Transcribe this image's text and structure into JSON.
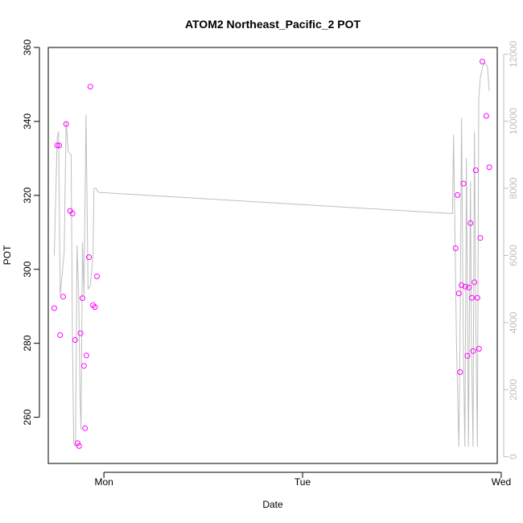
{
  "chart_data": {
    "type": "scatter",
    "title": "ATOM2 Northeast_Pacific_2 POT",
    "xlabel": "Date",
    "ylabel": "POT",
    "x_unit": "days",
    "xlim": [
      -0.28,
      1.98
    ],
    "ylim": [
      247.5,
      360
    ],
    "y_ticks": [
      260,
      280,
      300,
      320,
      340,
      360
    ],
    "x_ticks": [
      {
        "label": "Mon",
        "value": 0
      },
      {
        "label": "Tue",
        "value": 1
      },
      {
        "label": "Wed",
        "value": 2
      }
    ],
    "right_axis": {
      "ylim": [
        -200,
        12200
      ],
      "ticks": [
        0,
        2000,
        4000,
        6000,
        8000,
        10000,
        12000
      ]
    },
    "colors": {
      "points": "#ff00ff",
      "line": "#bebebe",
      "axis": "#000000"
    },
    "series": [
      {
        "kind": "points",
        "x": [
          -0.25,
          -0.235,
          -0.225,
          -0.22,
          -0.205,
          -0.19,
          -0.17,
          -0.158,
          -0.145,
          -0.132,
          -0.125,
          -0.118,
          -0.108,
          -0.1,
          -0.095,
          -0.088,
          -0.075,
          -0.068,
          -0.055,
          -0.045,
          -0.035,
          1.77,
          1.78,
          1.787,
          1.793,
          1.8,
          1.81,
          1.82,
          1.83,
          1.838,
          1.845,
          1.852,
          1.858,
          1.865,
          1.872,
          1.88,
          1.888,
          1.895,
          1.905,
          1.925,
          1.94
        ],
        "y": [
          289.5,
          333.5,
          333.5,
          282.2,
          292.6,
          339.3,
          315.8,
          315.1,
          280.9,
          253,
          252.2,
          282.7,
          292.2,
          273.9,
          257,
          276.7,
          303.3,
          349.4,
          290.3,
          289.8,
          298.1,
          305.7,
          320.1,
          293.5,
          272.2,
          295.7,
          323.2,
          295.3,
          276.6,
          295.1,
          312.5,
          292.3,
          277.9,
          296.5,
          326.8,
          292.3,
          278.5,
          308.5,
          356.2,
          341.5,
          327.6
        ]
      },
      {
        "kind": "line",
        "x": [
          -0.25,
          -0.235,
          -0.228,
          -0.22,
          -0.2,
          -0.19,
          -0.18,
          -0.165,
          -0.158,
          -0.152,
          -0.143,
          -0.135,
          -0.127,
          -0.12,
          -0.115,
          -0.108,
          -0.1,
          -0.09,
          -0.08,
          -0.068,
          -0.055,
          -0.05,
          -0.04,
          -0.03,
          -0.025,
          1.75,
          1.755,
          1.76,
          1.775,
          1.787,
          1.793,
          1.8,
          1.81,
          1.817,
          1.825,
          1.835,
          1.845,
          1.85,
          1.858,
          1.865,
          1.872,
          1.88,
          1.887,
          1.895,
          1.905,
          1.915,
          1.93,
          1.94
        ],
        "y": [
          6000,
          9500,
          9700,
          4800,
          6100,
          10000,
          9100,
          9000,
          3400,
          400,
          300,
          6300,
          4800,
          1800,
          800,
          6400,
          4800,
          10200,
          5000,
          5100,
          6000,
          8000,
          8000,
          7900,
          7880,
          7250,
          7250,
          9600,
          3300,
          300,
          3700,
          10100,
          3000,
          300,
          8900,
          300,
          8200,
          3500,
          300,
          9700,
          4100,
          300,
          10700,
          11300,
          11600,
          11750,
          11650,
          10900
        ]
      }
    ]
  }
}
